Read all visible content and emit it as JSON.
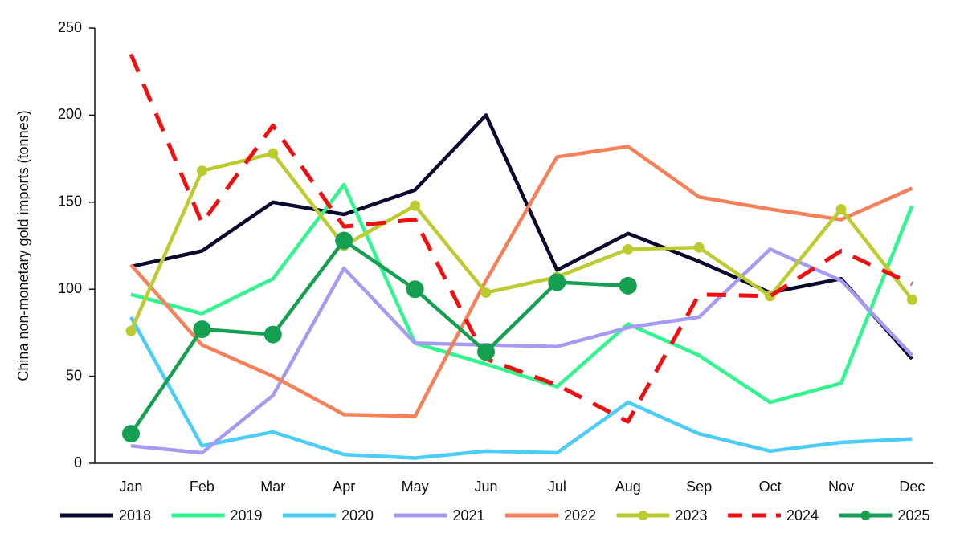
{
  "chart_data": {
    "type": "line",
    "y_label": "China non-monetary gold imports (tonnes)",
    "categories": [
      "Jan",
      "Feb",
      "Mar",
      "Apr",
      "May",
      "Jun",
      "Jul",
      "Aug",
      "Sep",
      "Oct",
      "Nov",
      "Dec"
    ],
    "ylim": [
      0,
      250
    ],
    "yticks": [
      0,
      50,
      100,
      150,
      200,
      250
    ],
    "grid": false,
    "legend": "bottom",
    "series": [
      {
        "name": "2018",
        "color": "#0a0a2e",
        "values": [
          113,
          122,
          150,
          143,
          157,
          200,
          111,
          132,
          116,
          98,
          106,
          60
        ]
      },
      {
        "name": "2019",
        "color": "#33f58f",
        "values": [
          97,
          86,
          106,
          160,
          69,
          57,
          44,
          80,
          62,
          35,
          46,
          148
        ]
      },
      {
        "name": "2020",
        "color": "#4dcdf5",
        "values": [
          84,
          10,
          18,
          5,
          3,
          7,
          6,
          35,
          17,
          7,
          12,
          14
        ]
      },
      {
        "name": "2021",
        "color": "#a59cf2",
        "values": [
          10,
          6,
          39,
          112,
          69,
          68,
          67,
          78,
          84,
          123,
          105,
          62
        ]
      },
      {
        "name": "2022",
        "color": "#f5805a",
        "values": [
          114,
          68,
          50,
          28,
          27,
          105,
          176,
          182,
          153,
          146,
          140,
          158
        ]
      },
      {
        "name": "2023",
        "color": "#bccb2e",
        "marker": "small",
        "values": [
          76,
          168,
          178,
          125,
          148,
          98,
          107,
          123,
          124,
          96,
          146,
          94
        ]
      },
      {
        "name": "2024",
        "color": "#ee1111",
        "dashed": true,
        "values": [
          235,
          138,
          194,
          136,
          140,
          60,
          45,
          24,
          97,
          96,
          122,
          103
        ]
      },
      {
        "name": "2025",
        "color": "#14a050",
        "marker": "large",
        "values": [
          17,
          77,
          74,
          128,
          100,
          64,
          104,
          102,
          null,
          null,
          null,
          null
        ]
      }
    ]
  }
}
